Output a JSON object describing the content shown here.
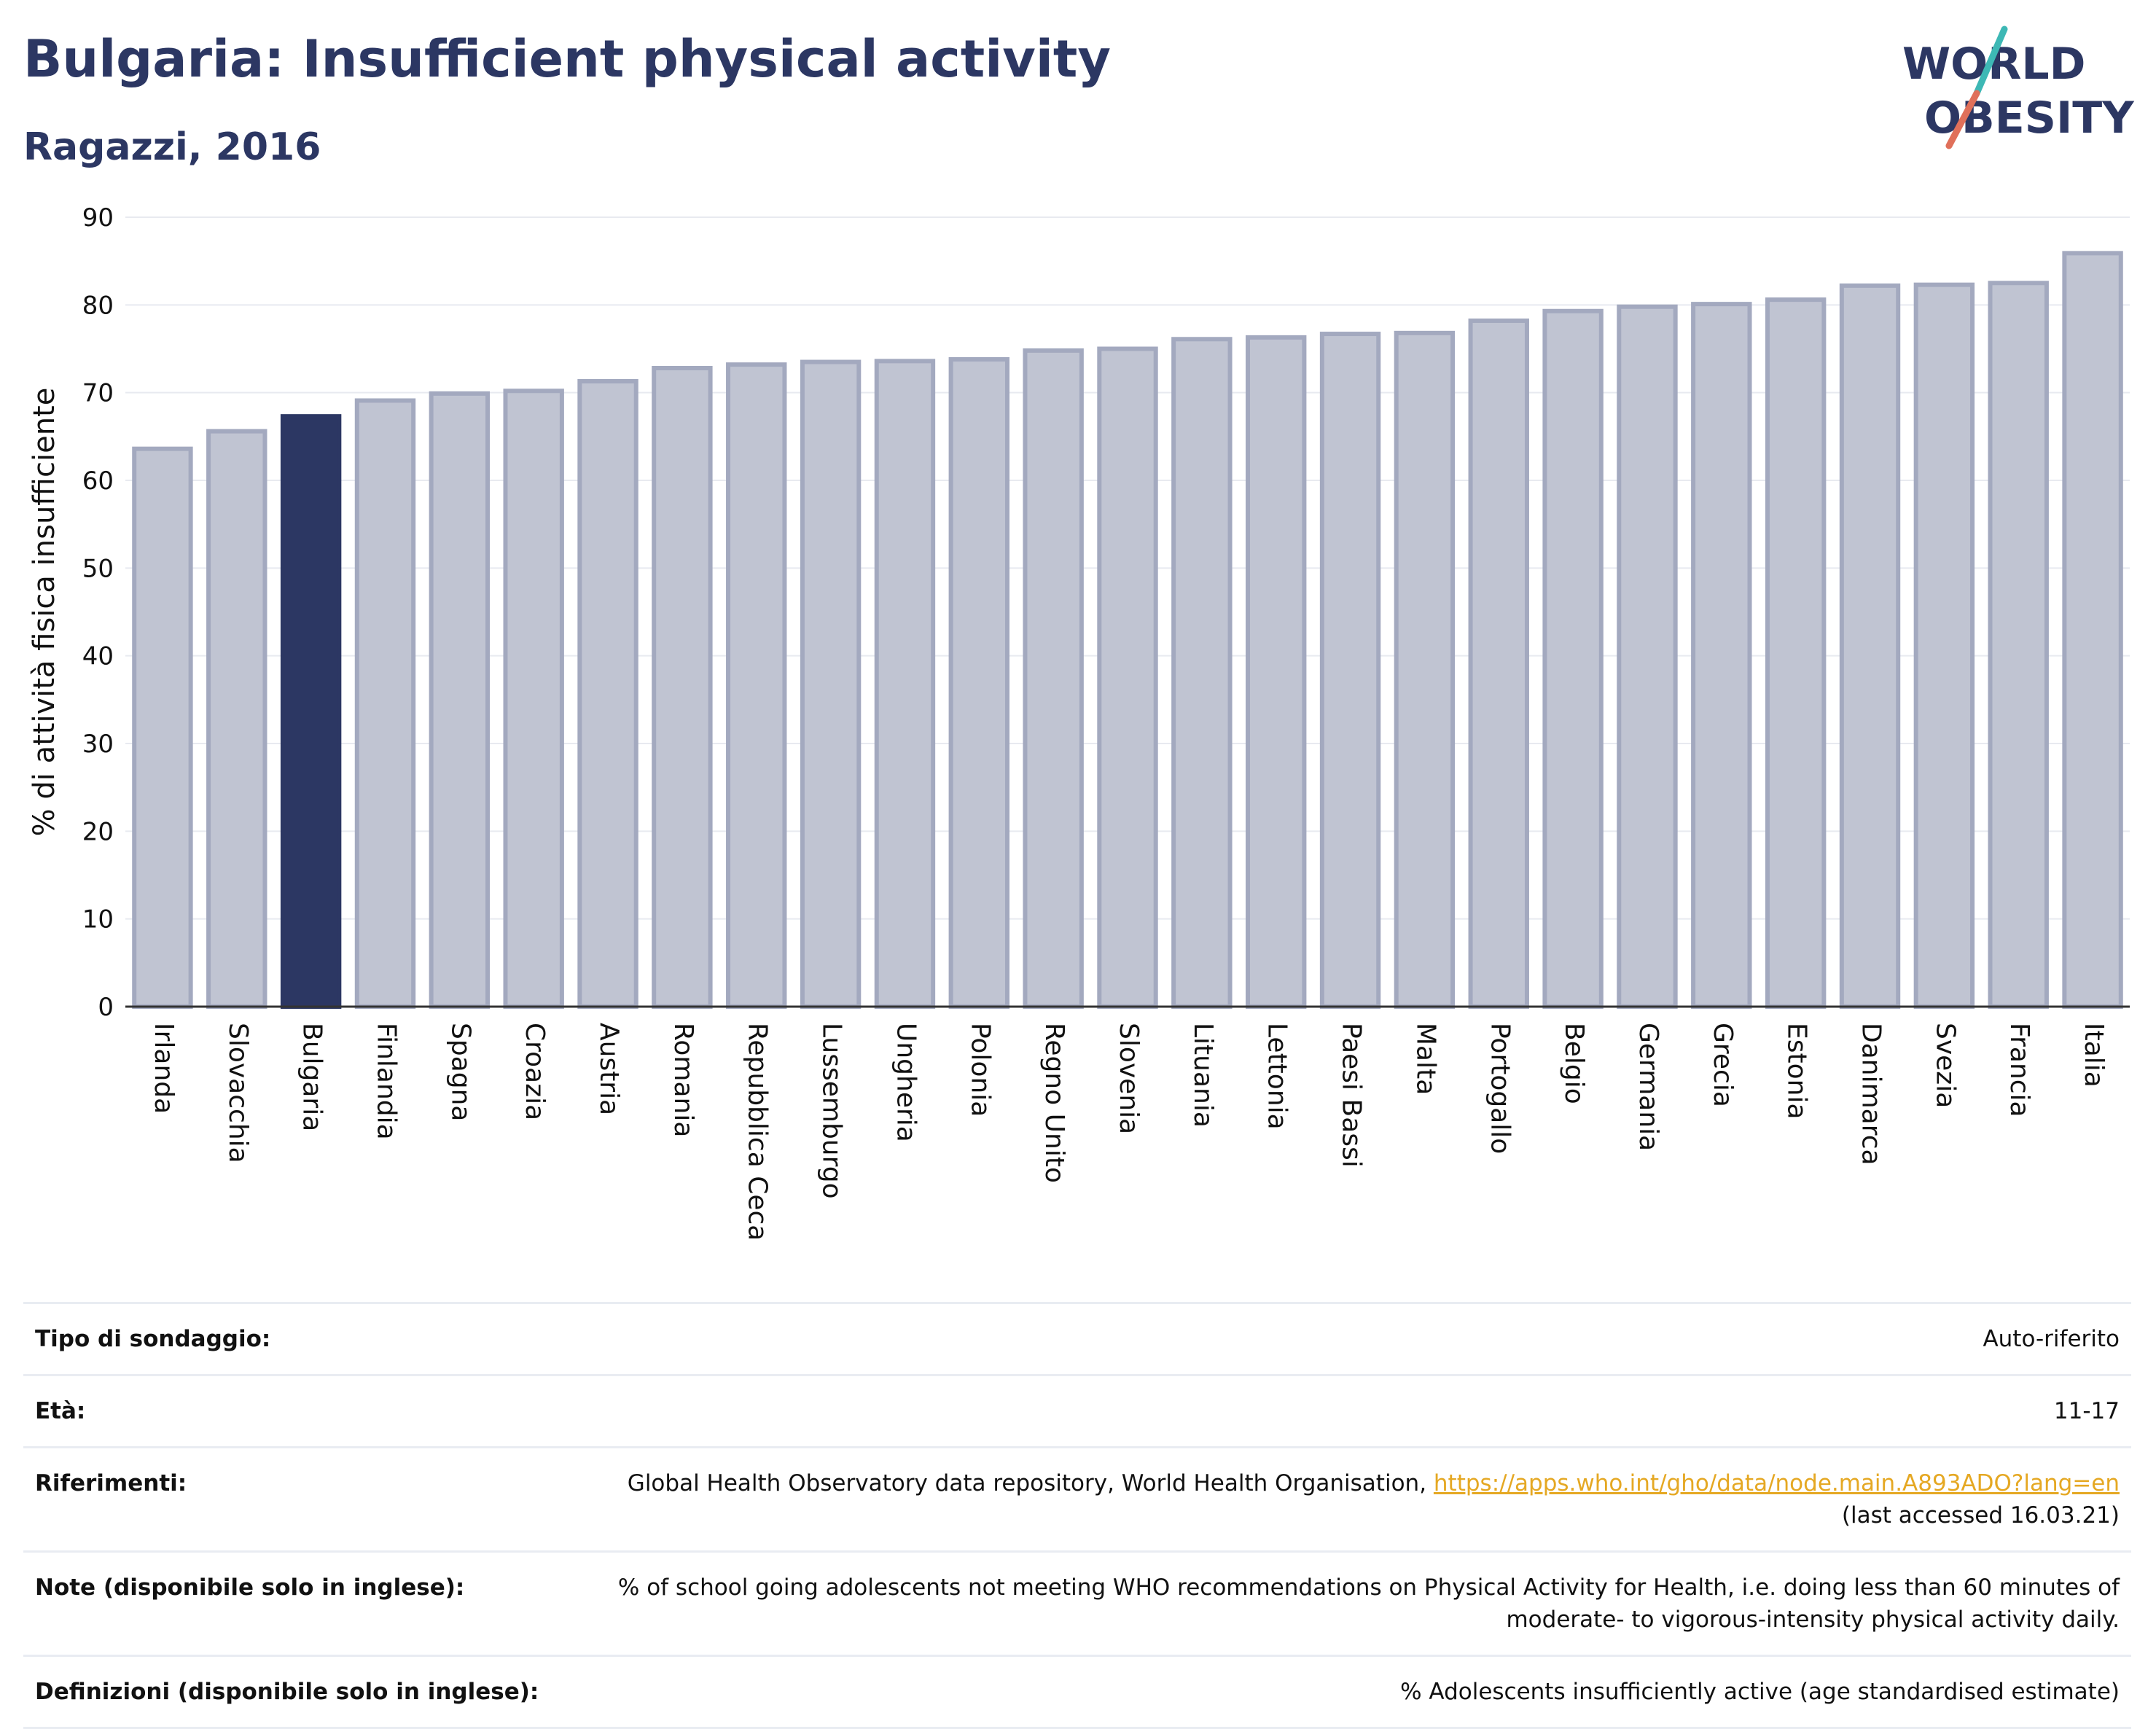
{
  "header": {
    "title": "Bulgaria: Insufficient physical activity",
    "subtitle": "Ragazzi, 2016"
  },
  "logo": {
    "line1": "WORLD",
    "line2": "OBESITY",
    "colors": {
      "text": "#2c3763",
      "slash_top": "#3db8b5",
      "slash_bottom": "#e0705a"
    }
  },
  "chart_data": {
    "type": "bar",
    "ylabel": "% di attività fisica insufficiente",
    "xlabel": "",
    "ylim": [
      0,
      90
    ],
    "yticks": [
      0,
      10,
      20,
      30,
      40,
      50,
      60,
      70,
      80,
      90
    ],
    "grid": true,
    "highlight": "Bulgaria",
    "colors": {
      "bar": "#c0c4d2",
      "bar_edge": "#a3a9bf",
      "highlight": "#2c3763"
    },
    "categories": [
      "Irlanda",
      "Slovacchia",
      "Bulgaria",
      "Finlandia",
      "Spagna",
      "Croazia",
      "Austria",
      "Romania",
      "Repubblica Ceca",
      "Lussemburgo",
      "Ungheria",
      "Polonia",
      "Regno Unito",
      "Slovenia",
      "Lituania",
      "Lettonia",
      "Paesi Bassi",
      "Malta",
      "Portogallo",
      "Belgio",
      "Germania",
      "Grecia",
      "Estonia",
      "Danimarca",
      "Svezia",
      "Francia",
      "Italia"
    ],
    "values": [
      63.6,
      65.6,
      67.3,
      69.1,
      69.9,
      70.2,
      71.3,
      72.8,
      73.2,
      73.5,
      73.6,
      73.8,
      74.8,
      75.0,
      76.1,
      76.3,
      76.7,
      76.8,
      78.2,
      79.3,
      79.8,
      80.1,
      80.6,
      82.2,
      82.3,
      82.5,
      85.9
    ]
  },
  "info_table": [
    {
      "label": "Tipo di sondaggio:",
      "value": "Auto-riferito"
    },
    {
      "label": "Età:",
      "value": "11-17"
    },
    {
      "label": "Riferimenti:",
      "value": "Global Health Observatory data repository, World Health Organisation, ",
      "link": "https://apps.who.int/gho/data/node.main.A893ADO?lang=en",
      "value2": "(last accessed 16.03.21)"
    },
    {
      "label": "Note (disponibile solo in inglese):",
      "value": "% of school going adolescents not meeting WHO recommendations on Physical Activity for Health, i.e. doing less than 60 minutes of",
      "value2": "moderate- to vigorous-intensity physical activity daily."
    },
    {
      "label": "Definizioni (disponibile solo in inglese):",
      "value": "% Adolescents insufficiently active (age standardised estimate)"
    }
  ]
}
